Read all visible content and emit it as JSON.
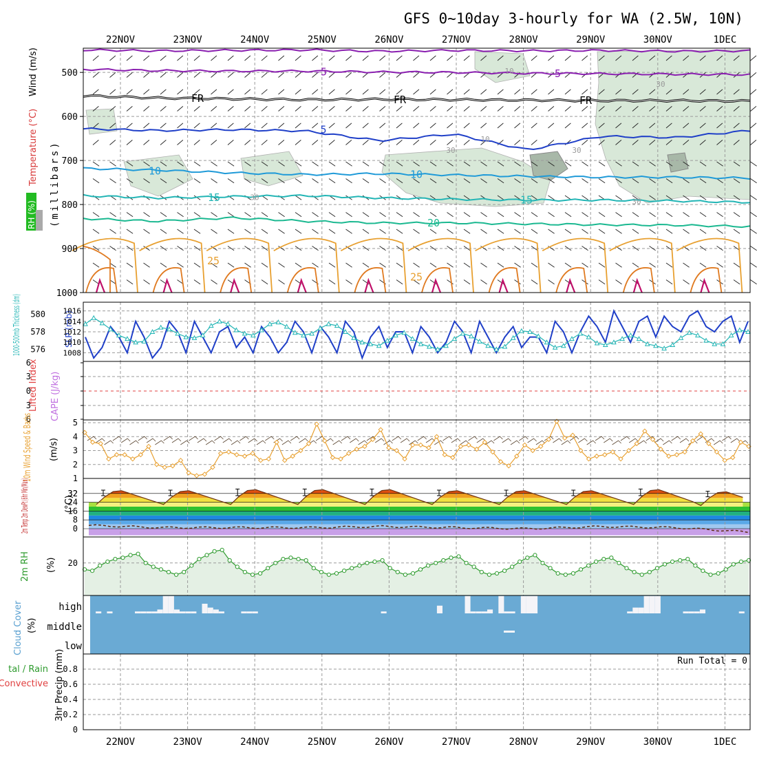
{
  "title": "GFS 0~10day 3-hourly for WA (2.5W, 10N)",
  "dates": [
    "22NOV",
    "23NOV",
    "24NOV",
    "25NOV",
    "26NOV",
    "27NOV",
    "28NOV",
    "29NOV",
    "30NOV",
    "1DEC"
  ],
  "colors": {
    "grid": "#9a9a9a",
    "rh_fill": "#d8e8d8",
    "slp": "#1f3fc8",
    "thickness": "#22b5b5",
    "wind10m": "#e8a030",
    "rh2m": "#2e9b2e",
    "cloud_bg": "#6aaad4",
    "precip_zero": "#e04040"
  },
  "chart_data": [
    {
      "type": "line",
      "name": "upper_air",
      "ylabel_parts": [
        "RH (%)",
        "Temperature (°C)",
        "Wind (m/s)"
      ],
      "yunit": "(millibars)",
      "yticks": [
        500,
        600,
        700,
        800,
        900,
        1000
      ],
      "ylim": [
        445,
        1000
      ],
      "series": [
        {
          "name": "-5",
          "color": "#8a1fb0",
          "label": "-5",
          "y_at_dates": [
            493,
            496,
            497,
            497,
            499,
            500,
            502,
            503,
            504,
            505
          ]
        },
        {
          "name": "-5 upper",
          "color": "#8a1fb0",
          "label": "",
          "y_at_dates": [
            449,
            451,
            450,
            449,
            452,
            450,
            451,
            450,
            452,
            451
          ]
        },
        {
          "name": "FR",
          "color": "#000000",
          "label": "FR",
          "y_at_dates": [
            553,
            558,
            560,
            562,
            561,
            562,
            563,
            564,
            564,
            565
          ]
        },
        {
          "name": "5",
          "color": "#1f3fc8",
          "label": "5",
          "y_at_dates": [
            628,
            632,
            630,
            633,
            655,
            640,
            676,
            645,
            648,
            632
          ]
        },
        {
          "name": "10",
          "color": "#1f9ad8",
          "label": "10",
          "y_at_dates": [
            718,
            722,
            728,
            732,
            730,
            733,
            736,
            738,
            738,
            740
          ]
        },
        {
          "name": "15",
          "color": "#22b5b5",
          "label": "15",
          "y_at_dates": [
            780,
            785,
            782,
            780,
            785,
            788,
            790,
            790,
            792,
            795
          ]
        },
        {
          "name": "20",
          "color": "#1ab890",
          "label": "20",
          "y_at_dates": [
            832,
            838,
            830,
            838,
            842,
            842,
            844,
            846,
            847,
            850
          ]
        }
      ],
      "labels": [
        "-5",
        "FR",
        "5",
        "10",
        "15",
        "20",
        "25",
        "30",
        "10"
      ]
    },
    {
      "type": "line",
      "name": "thickness_slp",
      "ylabel_left": "1000-500mb Thickness (dm)",
      "ylabel_right": "SLP (mb)",
      "yticks_left": [
        576,
        578,
        580
      ],
      "yticks_right": [
        1008,
        1010,
        1012,
        1014,
        1016
      ],
      "series": [
        {
          "name": "SLP (mb)",
          "values": [
            1011,
            1007,
            1009,
            1013,
            1011,
            1008,
            1014,
            1011,
            1007,
            1009,
            1014,
            1012,
            1008,
            1014,
            1011,
            1008,
            1012,
            1013,
            1009,
            1011,
            1008,
            1013,
            1011,
            1008,
            1010,
            1014,
            1012,
            1008,
            1013,
            1011,
            1008,
            1014,
            1012,
            1007,
            1011,
            1013,
            1009,
            1012,
            1012,
            1008,
            1013,
            1011,
            1008,
            1010,
            1014,
            1012,
            1008,
            1014,
            1011,
            1008,
            1011,
            1013,
            1009,
            1011,
            1011,
            1008,
            1014,
            1012,
            1008,
            1012,
            1015,
            1013,
            1010,
            1016,
            1013,
            1010,
            1014,
            1015,
            1011,
            1015,
            1013,
            1012,
            1015,
            1016,
            1013,
            1012,
            1014,
            1015,
            1010,
            1014
          ]
        },
        {
          "name": "1000-500mb Thickness (dm)",
          "values": [
            578.9,
            579.6,
            579.0,
            578.3,
            577.6,
            577.2,
            576.8,
            576.9,
            578.0,
            578.5,
            578.3,
            577.8,
            577.4,
            577.3,
            577.6,
            578.7,
            579.2,
            578.9,
            578.2,
            577.8,
            577.6,
            578.2,
            578.9,
            579.1,
            578.6,
            577.9,
            577.6,
            577.8,
            578.4,
            578.9,
            578.7,
            578.0,
            577.3,
            576.8,
            576.6,
            576.4,
            577.0,
            577.6,
            577.9,
            577.2,
            576.6,
            576.3,
            576.0,
            576.4,
            577.2,
            577.8,
            577.5,
            576.9,
            576.4,
            576.0,
            576.3,
            577.3,
            578.1,
            578.0,
            577.5,
            576.8,
            576.2,
            576.4,
            577.2,
            577.8,
            577.4,
            576.7,
            576.5,
            576.8,
            577.2,
            577.6,
            577.2,
            576.6,
            576.4,
            576.1,
            576.5,
            577.3,
            577.9,
            577.6,
            577.0,
            576.6,
            576.6,
            577.6,
            578.2,
            578.0
          ]
        }
      ]
    },
    {
      "type": "line",
      "name": "lifted_index",
      "ylabel_left": "Lifted Index",
      "ylabel_right": "CAPE (J/kg)",
      "yticks": [
        6,
        3,
        0,
        3,
        6
      ],
      "values": []
    },
    {
      "type": "line",
      "name": "wind10m",
      "ylabel": "10m Wind Speed & Barbs",
      "yunit": "(m/s)",
      "yticks": [
        1,
        2,
        3,
        4,
        5
      ],
      "ylim": [
        1,
        5.2
      ],
      "values": [
        4.3,
        3.6,
        3.5,
        2.4,
        2.7,
        2.7,
        2.4,
        2.7,
        3.3,
        2.0,
        1.8,
        1.9,
        2.3,
        1.4,
        1.2,
        1.3,
        1.8,
        2.8,
        2.9,
        2.7,
        2.6,
        2.8,
        2.3,
        2.4,
        3.6,
        2.3,
        2.6,
        3.0,
        3.5,
        4.9,
        3.7,
        2.5,
        2.4,
        2.8,
        3.1,
        3.3,
        3.8,
        4.5,
        3.2,
        3.0,
        2.4,
        3.4,
        3.4,
        3.2,
        4.0,
        2.7,
        2.5,
        3.3,
        3.4,
        3.1,
        3.6,
        2.9,
        2.2,
        1.9,
        2.6,
        3.4,
        3.0,
        3.3,
        3.8,
        5.1,
        3.9,
        4.1,
        3.0,
        2.4,
        2.6,
        2.7,
        2.9,
        2.4,
        3.0,
        3.5,
        4.4,
        3.8,
        3.1,
        2.6,
        2.7,
        2.9,
        3.7,
        4.2,
        3.5,
        2.9,
        2.3,
        2.5,
        3.6,
        3.3
      ]
    },
    {
      "type": "area",
      "name": "temp2m",
      "ylabel": "2m Temp 2m DewPt (6hr Min/Max)",
      "yunit": "(°C)",
      "yticks": [
        0,
        8,
        16,
        24,
        32
      ],
      "temp_max": [
        35,
        35,
        36,
        36,
        36,
        35,
        35,
        35,
        36,
        34
      ],
      "temp_min": [
        22,
        22,
        22,
        22,
        22,
        22,
        22,
        22,
        22,
        21
      ],
      "dewpoint": [
        3,
        1,
        1,
        1,
        2,
        1,
        0,
        2,
        1,
        -3
      ]
    },
    {
      "type": "area",
      "name": "rh2m",
      "ylabel": "2m RH",
      "yunit": "(%)",
      "yticks": [
        20
      ],
      "ylim": [
        -5,
        40
      ],
      "values": [
        15,
        14,
        18,
        21,
        23,
        24,
        26,
        27,
        20,
        17,
        15,
        13,
        11,
        13,
        18,
        23,
        26,
        29,
        30,
        22,
        17,
        13,
        11,
        12,
        16,
        20,
        23,
        24,
        23,
        22,
        16,
        13,
        11,
        12,
        14,
        16,
        18,
        20,
        21,
        22,
        16,
        13,
        11,
        12,
        15,
        18,
        20,
        22,
        24,
        25,
        20,
        17,
        13,
        11,
        12,
        14,
        17,
        21,
        24,
        26,
        20,
        16,
        12,
        11,
        12,
        15,
        18,
        21,
        23,
        24,
        20,
        16,
        13,
        11,
        13,
        16,
        19,
        21,
        22,
        23,
        18,
        14,
        11,
        12,
        15,
        19,
        21,
        22
      ]
    },
    {
      "type": "heatmap",
      "name": "cloud_cover",
      "ylabel": "Cloud Cover",
      "yunit": "(%)",
      "yticks": [
        "high",
        "middle",
        "low"
      ],
      "high_cover_pct": [
        0,
        10,
        0,
        10,
        0,
        0,
        0,
        0,
        10,
        10,
        10,
        10,
        20,
        90,
        90,
        20,
        10,
        10,
        10,
        0,
        50,
        30,
        20,
        10,
        0,
        0,
        0,
        10,
        10,
        10,
        0,
        0,
        0,
        0,
        0,
        0,
        0,
        0,
        0,
        0,
        0,
        0,
        0,
        0,
        0,
        0,
        0,
        0,
        0,
        0,
        0,
        0,
        10,
        0,
        0,
        0,
        0,
        0,
        0,
        0,
        0,
        0,
        40,
        0,
        0,
        0,
        0,
        90,
        10,
        10,
        10,
        20,
        0,
        90,
        10,
        10,
        0,
        90,
        90,
        90,
        0,
        0,
        0,
        0,
        0,
        0,
        0,
        0,
        0,
        0,
        0,
        0,
        0,
        0,
        0,
        0,
        10,
        30,
        30,
        90,
        90,
        90,
        0,
        0,
        0,
        0,
        10,
        10,
        10,
        20,
        0,
        0,
        0,
        0,
        0,
        0,
        10,
        0
      ],
      "mid_cover_note": ""
    },
    {
      "type": "bar",
      "name": "precip",
      "ylabel_left": "Total / Rain Convective",
      "ylabel": "3hr Precip (mm)",
      "yticks": [
        0,
        0.2,
        0.4,
        0.6,
        0.8
      ],
      "ylim": [
        0,
        1.0
      ],
      "annotation": "Run Total = 0",
      "values": []
    }
  ]
}
